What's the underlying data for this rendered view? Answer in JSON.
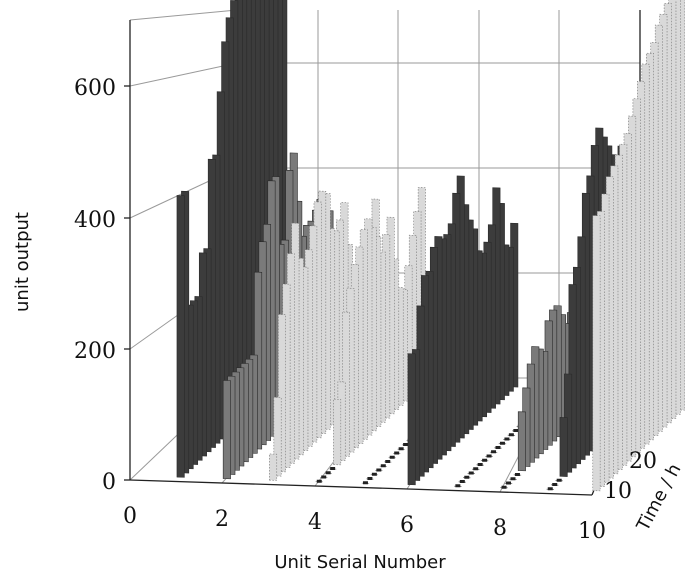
{
  "chart_data": {
    "type": "bar3d",
    "title": "",
    "xlabel": "Unit Serial Number",
    "ylabel": "unit output",
    "zlabel": "Time / h",
    "x_ticks": [
      "0",
      "2",
      "4",
      "6",
      "8",
      "10"
    ],
    "y_ticks": [
      "0",
      "200",
      "400",
      "600"
    ],
    "z_ticks": [
      "10",
      "20"
    ],
    "xlim": [
      0,
      10
    ],
    "ylim": [
      0,
      700
    ],
    "zlim": [
      0,
      24
    ],
    "grid": true,
    "colors": {
      "dark": "#3c3c3c",
      "medium": "#7a7a7a",
      "dotted": "#d9d9d9"
    },
    "hours": [
      1,
      2,
      3,
      4,
      5,
      6,
      7,
      8,
      9,
      10,
      11,
      12,
      13,
      14,
      15,
      16,
      17,
      18,
      19,
      20,
      21,
      22,
      23,
      24
    ],
    "series": [
      {
        "unit": 1,
        "style": "dark",
        "values": [
          430,
          430,
          250,
          250,
          250,
          310,
          310,
          440,
          440,
          530,
          600,
          630,
          650,
          650,
          650,
          650,
          650,
          650,
          650,
          650,
          650,
          650,
          650,
          650
        ]
      },
      {
        "unit": 2,
        "style": "medium",
        "values": [
          150,
          150,
          150,
          150,
          150,
          150,
          150,
          270,
          310,
          330,
          390,
          390,
          280,
          280,
          380,
          400,
          320,
          260,
          270,
          270,
          280,
          290,
          260,
          260
        ]
      },
      {
        "unit": 3,
        "style": "dotted",
        "values": [
          40,
          120,
          240,
          280,
          320,
          360,
          300,
          280,
          300,
          330,
          360,
          370,
          360,
          300,
          290,
          300,
          320,
          250,
          210,
          200,
          210,
          220,
          240,
          280
        ]
      },
      {
        "unit": 4,
        "style": "dotted",
        "values": [
          0,
          0,
          0,
          0,
          100,
          120,
          220,
          250,
          280,
          300,
          320,
          330,
          310,
          290,
          260,
          280,
          300,
          230,
          180,
          170,
          200,
          240,
          270,
          300
        ]
      },
      {
        "unit": 5,
        "style": "dotted",
        "values": [
          0,
          0,
          0,
          0,
          0,
          0,
          0,
          0,
          0,
          0,
          0,
          0,
          0,
          0,
          0,
          0,
          0,
          0,
          0,
          0,
          0,
          0,
          0,
          0
        ]
      },
      {
        "unit": 6,
        "style": "dark",
        "values": [
          200,
          200,
          260,
          300,
          300,
          330,
          340,
          330,
          330,
          340,
          380,
          400,
          350,
          320,
          300,
          260,
          250,
          260,
          280,
          330,
          300,
          230,
          220,
          250
        ]
      },
      {
        "unit": 7,
        "style": "dark",
        "values": [
          0,
          0,
          0,
          0,
          0,
          0,
          0,
          0,
          0,
          0,
          0,
          0,
          0,
          0,
          0,
          0,
          0,
          0,
          0,
          0,
          0,
          0,
          0,
          0
        ]
      },
      {
        "unit": 8,
        "style": "medium",
        "values": [
          0,
          0,
          0,
          0,
          90,
          120,
          150,
          170,
          160,
          150,
          190,
          200,
          200,
          180,
          160,
          170,
          190,
          140,
          140,
          150,
          150,
          150,
          160,
          170
        ]
      },
      {
        "unit": 9,
        "style": "dark",
        "values": [
          0,
          0,
          0,
          90,
          150,
          280,
          300,
          340,
          400,
          420,
          460,
          480,
          460,
          440,
          420,
          400,
          420,
          380,
          350,
          340,
          360,
          380,
          400,
          420
        ]
      },
      {
        "unit": 10,
        "style": "dotted",
        "values": [
          420,
          420,
          440,
          460,
          470,
          480,
          490,
          500,
          520,
          540,
          560,
          580,
          590,
          600,
          620,
          630,
          640,
          650,
          650,
          650,
          650,
          650,
          650,
          650
        ]
      }
    ]
  }
}
